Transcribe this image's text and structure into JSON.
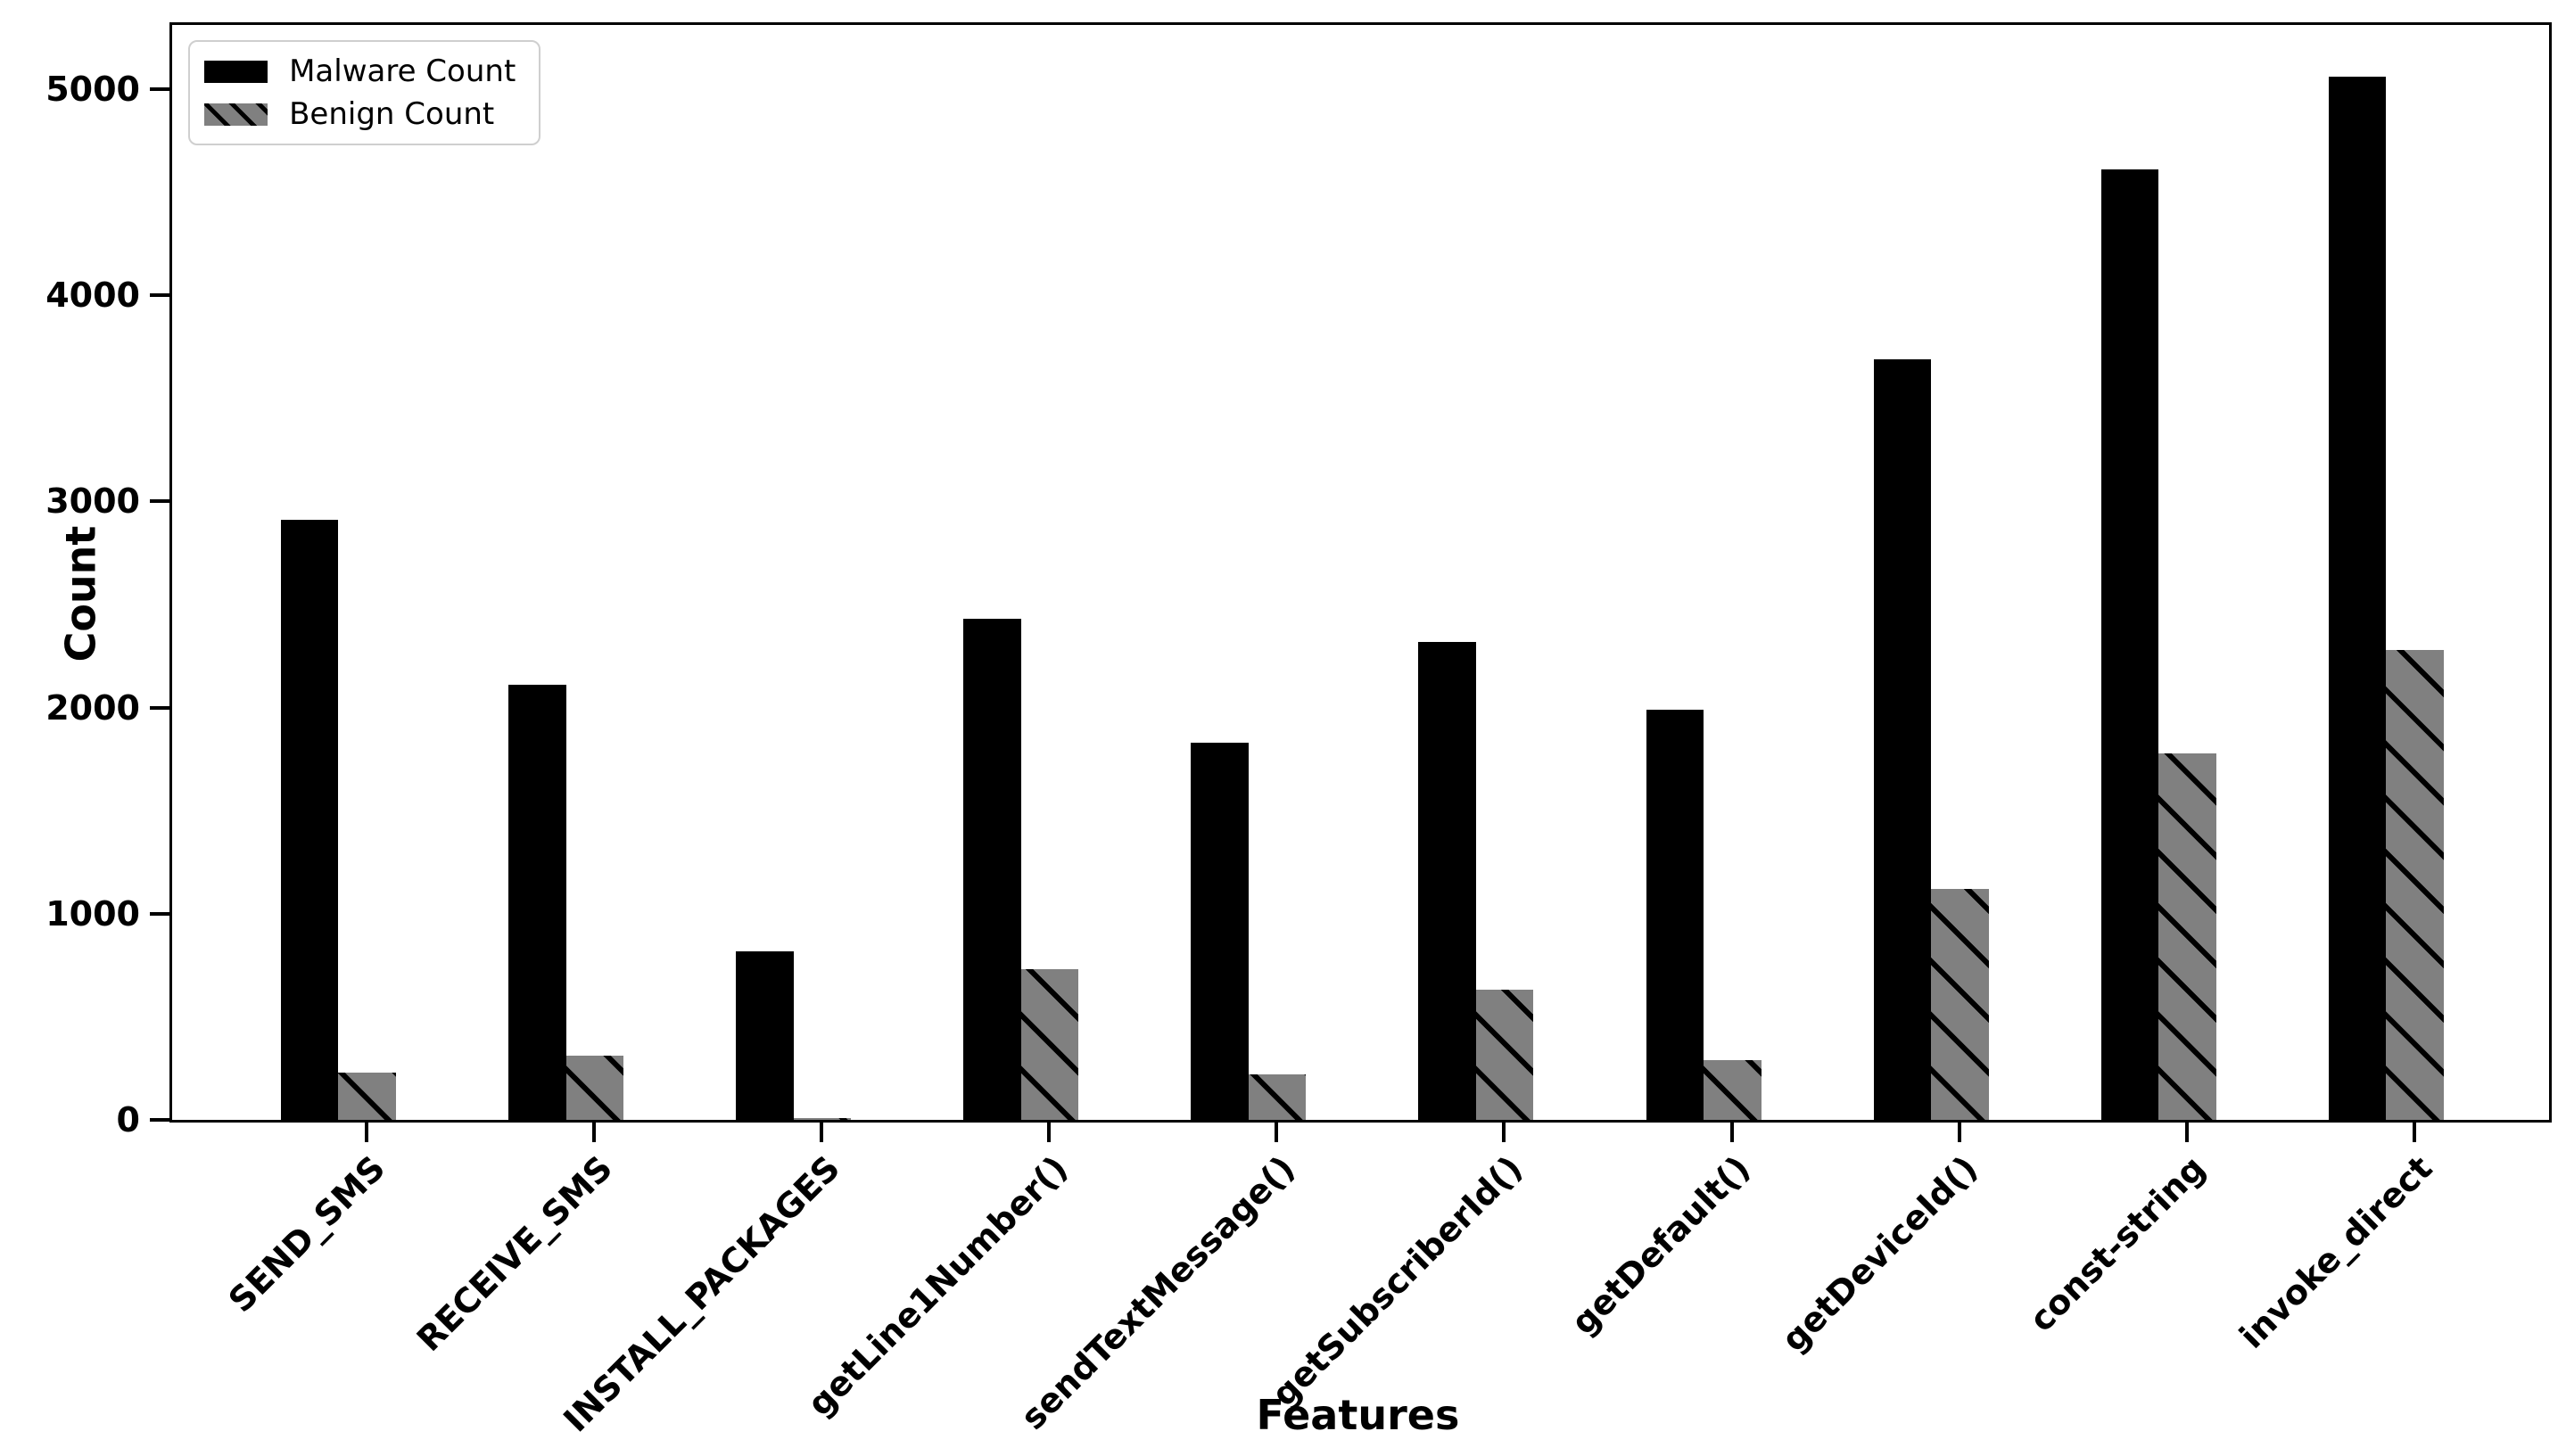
{
  "figure": {
    "title": "",
    "ylabel": "Count",
    "xlabel": "Features",
    "background_color": "#ffffff",
    "bar_color_malware": "#000000",
    "bar_color_benign": "#808080",
    "hatch_pattern_benign": "\\",
    "legend": {
      "position": "upper left",
      "items": [
        {
          "label": "Malware Count",
          "swatch": "solid-black"
        },
        {
          "label": "Benign Count",
          "swatch": "gray-hatched"
        }
      ]
    }
  },
  "chart_data": {
    "type": "bar",
    "title": "",
    "xlabel": "Features",
    "ylabel": "Count",
    "categories": [
      "SEND_SMS",
      "RECEIVE_SMS",
      "INSTALL_PACKAGES",
      "getLine1Number()",
      "sendTextMessage()",
      "getSubscriberId()",
      "getDefault()",
      "getDeviceId()",
      "const-string",
      "invoke_direct"
    ],
    "series": [
      {
        "name": "Malware Count",
        "color": "#000000",
        "hatch": null,
        "values": [
          2910,
          2110,
          820,
          2430,
          1830,
          2320,
          1990,
          3690,
          4610,
          5060
        ]
      },
      {
        "name": "Benign Count",
        "color": "#808080",
        "hatch": "\\",
        "values": [
          230,
          310,
          10,
          730,
          220,
          630,
          290,
          1120,
          1780,
          2280
        ]
      }
    ],
    "yticks": [
      0,
      1000,
      2000,
      3000,
      4000,
      5000
    ],
    "ytick_labels": [
      "0",
      "1000",
      "2000",
      "3000",
      "4000",
      "5000"
    ],
    "ylim": [
      0,
      5311
    ],
    "grid": false,
    "legend_position": "upper left",
    "xtick_rotation_deg": 45
  }
}
